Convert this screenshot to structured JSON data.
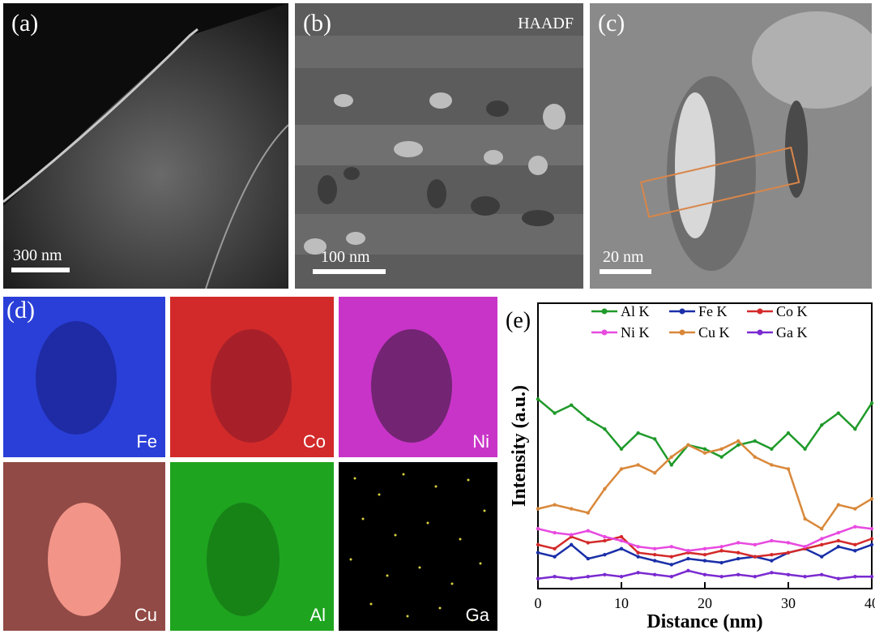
{
  "panels": {
    "a": {
      "label": "(a)",
      "scalebar": "300 nm"
    },
    "b": {
      "label": "(b)",
      "tag": "HAADF",
      "scalebar": "100 nm"
    },
    "c": {
      "label": "(c)",
      "scalebar": "20 nm"
    },
    "d": {
      "label": "(d)"
    },
    "e": {
      "label": "(e)"
    }
  },
  "maps": [
    {
      "element": "Fe",
      "color": "#2a3fd8"
    },
    {
      "element": "Co",
      "color": "#e0242a"
    },
    {
      "element": "Ni",
      "color": "#d23ad8"
    },
    {
      "element": "Cu",
      "color": "#e8857a"
    },
    {
      "element": "Al",
      "color": "#2ec62e"
    },
    {
      "element": "Ga",
      "color": "#d8d040"
    }
  ],
  "colors": {
    "box": "#d8864a"
  },
  "chart_data": {
    "type": "line",
    "xlabel": "Distance (nm)",
    "ylabel": "Intensity (a.u.)",
    "xlim": [
      0,
      40
    ],
    "x_ticks": [
      "0",
      "10",
      "20",
      "30",
      "40"
    ],
    "legend_placement": "top",
    "x": [
      0,
      2,
      4,
      6,
      8,
      10,
      12,
      14,
      16,
      18,
      20,
      22,
      24,
      26,
      28,
      30,
      32,
      34,
      36,
      38,
      40
    ],
    "series": [
      {
        "name": "Al K",
        "color": "#1f9a2a",
        "marker": "square",
        "values": [
          0.95,
          0.88,
          0.92,
          0.85,
          0.8,
          0.7,
          0.78,
          0.75,
          0.62,
          0.72,
          0.7,
          0.66,
          0.72,
          0.74,
          0.7,
          0.78,
          0.7,
          0.82,
          0.88,
          0.8,
          0.93
        ]
      },
      {
        "name": "Fe K",
        "color": "#1a2fa8",
        "marker": "diamond",
        "values": [
          0.18,
          0.16,
          0.22,
          0.15,
          0.17,
          0.2,
          0.16,
          0.14,
          0.12,
          0.15,
          0.14,
          0.13,
          0.15,
          0.16,
          0.14,
          0.18,
          0.2,
          0.16,
          0.21,
          0.19,
          0.22
        ]
      },
      {
        "name": "Co K",
        "color": "#d42a2a",
        "marker": "triangle",
        "values": [
          0.22,
          0.2,
          0.26,
          0.23,
          0.24,
          0.26,
          0.18,
          0.17,
          0.16,
          0.18,
          0.17,
          0.19,
          0.18,
          0.16,
          0.17,
          0.18,
          0.2,
          0.22,
          0.24,
          0.22,
          0.25
        ]
      },
      {
        "name": "Ni K",
        "color": "#e84ae0",
        "marker": "down-triangle",
        "values": [
          0.3,
          0.28,
          0.27,
          0.29,
          0.26,
          0.24,
          0.21,
          0.2,
          0.21,
          0.19,
          0.2,
          0.21,
          0.23,
          0.22,
          0.24,
          0.23,
          0.21,
          0.25,
          0.28,
          0.31,
          0.3
        ]
      },
      {
        "name": "Cu K",
        "color": "#d9883a",
        "marker": "circle",
        "values": [
          0.4,
          0.42,
          0.4,
          0.38,
          0.5,
          0.6,
          0.62,
          0.58,
          0.66,
          0.72,
          0.68,
          0.7,
          0.74,
          0.66,
          0.62,
          0.6,
          0.35,
          0.3,
          0.42,
          0.4,
          0.45
        ]
      },
      {
        "name": "Ga K",
        "color": "#7a2ad0",
        "marker": "star",
        "values": [
          0.05,
          0.06,
          0.05,
          0.06,
          0.07,
          0.06,
          0.08,
          0.07,
          0.06,
          0.09,
          0.07,
          0.06,
          0.07,
          0.06,
          0.08,
          0.07,
          0.06,
          0.07,
          0.05,
          0.06,
          0.06
        ]
      }
    ]
  }
}
